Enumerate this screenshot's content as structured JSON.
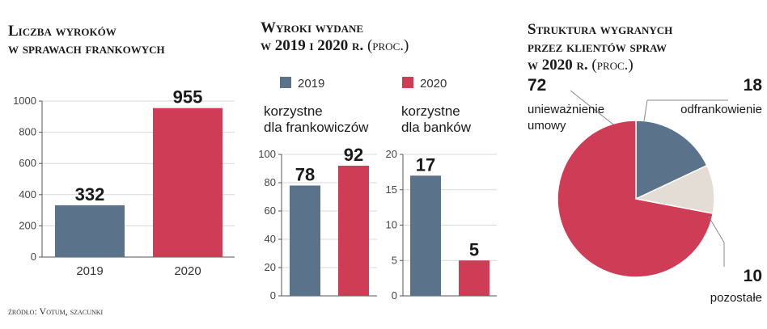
{
  "colors": {
    "y2019": "#5b738a",
    "y2020": "#cf3c56",
    "other": "#e4ddd6",
    "axis": "#555555",
    "grid": "#d8d8d8"
  },
  "panel1": {
    "title_line1": "Liczba wyroków",
    "title_line2": "w sprawach frankowych"
  },
  "panel2": {
    "title_line1": "Wyroki wydane",
    "title_line2": "w 2019 i 2020 r.",
    "title_unit": "(proc.)",
    "legend_2019": "2019",
    "legend_2020": "2020",
    "group1_line1": "korzystne",
    "group1_line2": "dla frankowiczów",
    "group2_line1": "korzystne",
    "group2_line2": "dla banków"
  },
  "panel3": {
    "title_line1": "Struktura wygranych",
    "title_line2": "przez klientów spraw",
    "title_line3": "w 2020 r.",
    "title_unit": "(proc.)"
  },
  "source": "źródło: Votum, szacunki",
  "chart_data": [
    {
      "type": "bar",
      "title": "Liczba wyroków w sprawach frankowych",
      "categories": [
        "2019",
        "2020"
      ],
      "values": [
        332,
        955
      ],
      "ylim": [
        0,
        1000
      ],
      "yticks": [
        "0",
        "200",
        "400",
        "600",
        "800",
        "1000"
      ]
    },
    {
      "type": "bar",
      "title": "korzystne dla frankowiczów",
      "categories": [
        "2019",
        "2020"
      ],
      "values": [
        78,
        92
      ],
      "ylim": [
        0,
        100
      ],
      "yticks": [
        "0",
        "20",
        "40",
        "60",
        "80",
        "100"
      ]
    },
    {
      "type": "bar",
      "title": "korzystne dla banków",
      "categories": [
        "2019",
        "2020"
      ],
      "values": [
        17,
        5
      ],
      "ylim": [
        0,
        20
      ],
      "yticks": [
        "0",
        "5",
        "10",
        "15",
        "20"
      ]
    },
    {
      "type": "pie",
      "title": "Struktura wygranych przez klientów spraw w 2020 r. (proc.)",
      "slices": [
        {
          "label": "unieważnienie umowy",
          "value": 72
        },
        {
          "label": "odfrankowienie",
          "value": 18
        },
        {
          "label": "pozostałe",
          "value": 10
        }
      ]
    }
  ]
}
